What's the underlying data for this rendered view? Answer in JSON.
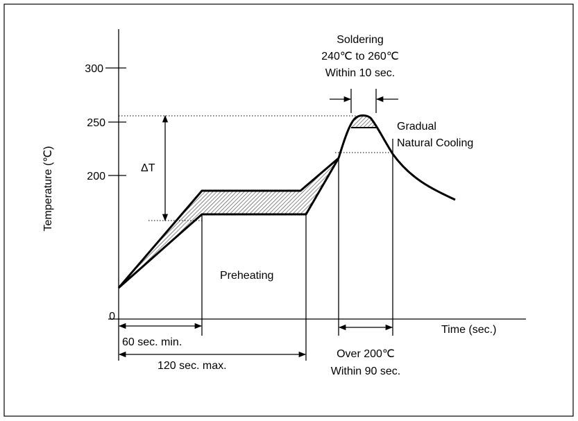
{
  "y_axis": {
    "label": "Temperature (℃)",
    "ticks": [
      {
        "value": 300,
        "label": "300"
      },
      {
        "value": 250,
        "label": "250"
      },
      {
        "value": 200,
        "label": "200"
      },
      {
        "value": 0,
        "label": "0"
      }
    ]
  },
  "x_axis": {
    "label": "Time (sec.)"
  },
  "annotations": {
    "soldering": [
      "Soldering",
      "240℃  to 260℃",
      "Within 10 sec."
    ],
    "cooling": [
      "Gradual",
      "Natural Cooling"
    ],
    "delta_t": "ΔT",
    "preheating": "Preheating",
    "preheat_min": "60 sec. min.",
    "preheat_max": "120 sec. max.",
    "over_200": [
      "Over 200℃",
      "Within 90 sec."
    ]
  },
  "colors": {
    "line": "#000000",
    "hatch": "#555555",
    "frame": "#000000"
  }
}
